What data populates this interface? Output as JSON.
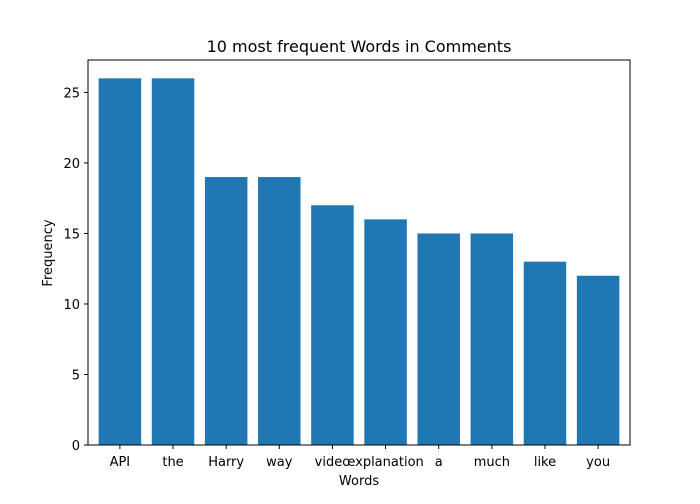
{
  "chart_data": {
    "type": "bar",
    "title": "10 most frequent Words in Comments",
    "xlabel": "Words",
    "ylabel": "Frequency",
    "categories": [
      "API",
      "the",
      "Harry",
      "way",
      "video",
      "explanation",
      "a",
      "much",
      "like",
      "you"
    ],
    "values": [
      26,
      26,
      19,
      19,
      17,
      16,
      15,
      15,
      13,
      12
    ],
    "ylim": [
      0,
      27.3
    ],
    "yticks": [
      0,
      5,
      10,
      15,
      20,
      25
    ],
    "grid": false,
    "bar_color": "#1f77b4"
  }
}
